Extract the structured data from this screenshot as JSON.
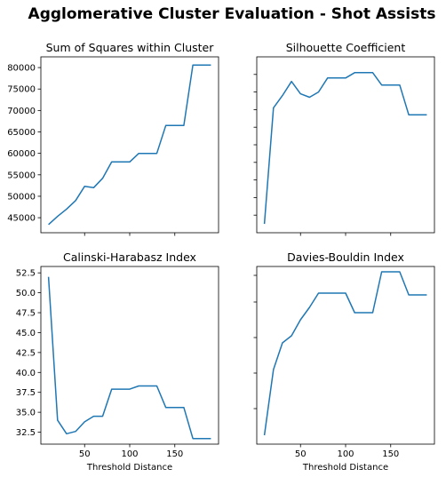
{
  "suptitle": "Agglomerative Cluster Evaluation - Shot Assists",
  "chart_data": [
    {
      "type": "line",
      "title": "Sum of Squares within Cluster",
      "xlabel": "",
      "ylabel": "",
      "xlim": [
        1.5,
        198.5
      ],
      "ylim": [
        41500,
        82500
      ],
      "xticks": [
        50,
        100,
        150
      ],
      "show_xtick_labels": false,
      "yticks": [
        45000,
        50000,
        55000,
        60000,
        65000,
        70000,
        75000,
        80000
      ],
      "ytick_labels": [
        "45000",
        "50000",
        "55000",
        "60000",
        "65000",
        "70000",
        "75000",
        "80000"
      ],
      "show_ytick_labels": true,
      "x": [
        10,
        20,
        30,
        40,
        50,
        60,
        70,
        80,
        90,
        100,
        110,
        120,
        130,
        140,
        150,
        160,
        170,
        180,
        190
      ],
      "y": [
        43400,
        45300,
        47000,
        49000,
        52300,
        52000,
        54200,
        58000,
        58000,
        58000,
        60000,
        60000,
        60000,
        66500,
        66500,
        66500,
        80600,
        80600,
        80600
      ]
    },
    {
      "type": "line",
      "title": "Silhouette Coefficient",
      "xlabel": "",
      "ylabel": "",
      "xlim": [
        1.5,
        198.5
      ],
      "ylim": [
        0,
        1
      ],
      "xticks": [
        50,
        100,
        150
      ],
      "show_xtick_labels": false,
      "yticks": [
        0.1,
        0.2,
        0.3,
        0.4,
        0.5,
        0.6,
        0.7,
        0.8,
        0.9
      ],
      "show_ytick_labels": false,
      "x": [
        10,
        20,
        30,
        40,
        50,
        60,
        70,
        80,
        90,
        100,
        110,
        120,
        130,
        140,
        150,
        160,
        170,
        180,
        190
      ],
      "y": [
        0.05,
        0.71,
        0.78,
        0.86,
        0.79,
        0.77,
        0.8,
        0.88,
        0.88,
        0.88,
        0.91,
        0.91,
        0.91,
        0.84,
        0.84,
        0.84,
        0.67,
        0.67,
        0.67
      ]
    },
    {
      "type": "line",
      "title": "Calinski-Harabasz Index",
      "xlabel": "Threshold Distance",
      "ylabel": "",
      "xlim": [
        1.5,
        198.5
      ],
      "ylim": [
        31.0,
        53.3
      ],
      "xticks": [
        50,
        100,
        150
      ],
      "xtick_labels": [
        "50",
        "100",
        "150"
      ],
      "show_xtick_labels": true,
      "yticks": [
        32.5,
        35.0,
        37.5,
        40.0,
        42.5,
        45.0,
        47.5,
        50.0,
        52.5
      ],
      "ytick_labels": [
        "32.5",
        "35.0",
        "37.5",
        "40.0",
        "42.5",
        "45.0",
        "47.5",
        "50.0",
        "52.5"
      ],
      "show_ytick_labels": true,
      "x": [
        10,
        15,
        20,
        30,
        40,
        50,
        60,
        70,
        80,
        90,
        100,
        110,
        120,
        130,
        140,
        150,
        160,
        170,
        180,
        190
      ],
      "y": [
        52.0,
        43.0,
        34.0,
        32.3,
        32.6,
        33.8,
        34.5,
        34.5,
        37.9,
        37.9,
        37.9,
        38.3,
        38.3,
        38.3,
        35.6,
        35.6,
        35.6,
        31.7,
        31.7,
        31.7
      ]
    },
    {
      "type": "line",
      "title": "Davies-Bouldin Index",
      "xlabel": "Threshold Distance",
      "ylabel": "",
      "xlim": [
        1.5,
        198.5
      ],
      "ylim": [
        0,
        1
      ],
      "xticks": [
        50,
        100,
        150
      ],
      "xtick_labels": [
        "50",
        "100",
        "150"
      ],
      "show_xtick_labels": true,
      "yticks": [
        0.2,
        0.4,
        0.6,
        0.8,
        0.95
      ],
      "show_ytick_labels": false,
      "x": [
        10,
        20,
        30,
        40,
        50,
        60,
        70,
        80,
        90,
        100,
        110,
        120,
        130,
        140,
        150,
        160,
        170,
        180,
        190
      ],
      "y": [
        0.05,
        0.42,
        0.57,
        0.61,
        0.7,
        0.77,
        0.85,
        0.85,
        0.85,
        0.85,
        0.74,
        0.74,
        0.74,
        0.97,
        0.97,
        0.97,
        0.84,
        0.84,
        0.84
      ]
    }
  ]
}
